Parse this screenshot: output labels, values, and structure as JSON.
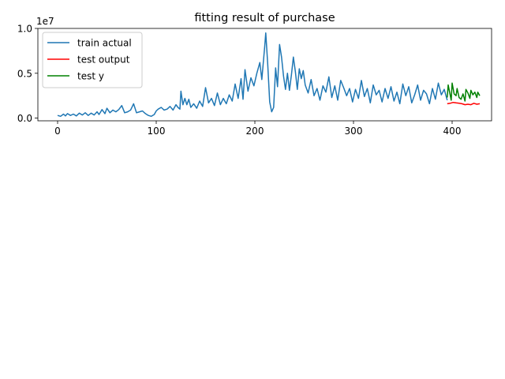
{
  "chart_data": {
    "type": "line",
    "title": "fitting result of purchase",
    "xlabel": "",
    "ylabel": "",
    "xlim": [
      -20,
      440
    ],
    "ylim": [
      -300000,
      10000000
    ],
    "y_offset_label": "1e7",
    "x_ticks": [
      0,
      100,
      200,
      300,
      400
    ],
    "x_tick_labels": [
      "0",
      "100",
      "200",
      "300",
      "400"
    ],
    "y_ticks": [
      0,
      5000000,
      10000000
    ],
    "y_tick_labels": [
      "0.0",
      "0.5",
      "1.0"
    ],
    "grid": false,
    "legend_position": "upper-left",
    "series": [
      {
        "name": "train actual",
        "color": "#1f77b4",
        "points": [
          [
            0,
            300000
          ],
          [
            3,
            200000
          ],
          [
            6,
            450000
          ],
          [
            8,
            250000
          ],
          [
            10,
            500000
          ],
          [
            13,
            300000
          ],
          [
            16,
            450000
          ],
          [
            19,
            250000
          ],
          [
            22,
            550000
          ],
          [
            25,
            350000
          ],
          [
            28,
            600000
          ],
          [
            31,
            300000
          ],
          [
            34,
            550000
          ],
          [
            37,
            350000
          ],
          [
            40,
            700000
          ],
          [
            42,
            400000
          ],
          [
            45,
            950000
          ],
          [
            48,
            500000
          ],
          [
            50,
            1100000
          ],
          [
            53,
            600000
          ],
          [
            56,
            900000
          ],
          [
            59,
            700000
          ],
          [
            62,
            950000
          ],
          [
            65,
            1400000
          ],
          [
            68,
            600000
          ],
          [
            71,
            700000
          ],
          [
            74,
            900000
          ],
          [
            77,
            1600000
          ],
          [
            80,
            600000
          ],
          [
            83,
            700000
          ],
          [
            86,
            800000
          ],
          [
            89,
            500000
          ],
          [
            92,
            300000
          ],
          [
            95,
            200000
          ],
          [
            98,
            400000
          ],
          [
            100,
            800000
          ],
          [
            102,
            1000000
          ],
          [
            105,
            1200000
          ],
          [
            108,
            900000
          ],
          [
            111,
            1000000
          ],
          [
            114,
            1300000
          ],
          [
            117,
            900000
          ],
          [
            120,
            1500000
          ],
          [
            122,
            1200000
          ],
          [
            124,
            1000000
          ],
          [
            125,
            3000000
          ],
          [
            127,
            1500000
          ],
          [
            129,
            2200000
          ],
          [
            131,
            1500000
          ],
          [
            133,
            2100000
          ],
          [
            135,
            1200000
          ],
          [
            138,
            1600000
          ],
          [
            141,
            1100000
          ],
          [
            144,
            1900000
          ],
          [
            147,
            1300000
          ],
          [
            150,
            3400000
          ],
          [
            153,
            1700000
          ],
          [
            156,
            2200000
          ],
          [
            159,
            1400000
          ],
          [
            162,
            2800000
          ],
          [
            165,
            1500000
          ],
          [
            168,
            2200000
          ],
          [
            171,
            1600000
          ],
          [
            174,
            2600000
          ],
          [
            177,
            1900000
          ],
          [
            180,
            3800000
          ],
          [
            183,
            2200000
          ],
          [
            186,
            4400000
          ],
          [
            188,
            2100000
          ],
          [
            190,
            5400000
          ],
          [
            193,
            3000000
          ],
          [
            196,
            4500000
          ],
          [
            199,
            3600000
          ],
          [
            202,
            5000000
          ],
          [
            205,
            6200000
          ],
          [
            207,
            4300000
          ],
          [
            210,
            8000000
          ],
          [
            211,
            9500000
          ],
          [
            213,
            6000000
          ],
          [
            215,
            1800000
          ],
          [
            217,
            700000
          ],
          [
            219,
            1200000
          ],
          [
            221,
            5600000
          ],
          [
            223,
            3500000
          ],
          [
            225,
            8200000
          ],
          [
            227,
            6800000
          ],
          [
            229,
            4700000
          ],
          [
            231,
            3200000
          ],
          [
            233,
            5000000
          ],
          [
            235,
            3100000
          ],
          [
            237,
            4800000
          ],
          [
            239,
            6800000
          ],
          [
            241,
            5200000
          ],
          [
            243,
            3200000
          ],
          [
            245,
            5500000
          ],
          [
            247,
            4400000
          ],
          [
            249,
            5300000
          ],
          [
            251,
            3700000
          ],
          [
            254,
            2800000
          ],
          [
            257,
            4300000
          ],
          [
            260,
            2500000
          ],
          [
            263,
            3300000
          ],
          [
            266,
            2000000
          ],
          [
            269,
            3600000
          ],
          [
            272,
            2900000
          ],
          [
            275,
            4600000
          ],
          [
            278,
            2300000
          ],
          [
            281,
            3600000
          ],
          [
            284,
            2000000
          ],
          [
            287,
            4200000
          ],
          [
            290,
            3400000
          ],
          [
            293,
            2500000
          ],
          [
            296,
            3300000
          ],
          [
            299,
            1800000
          ],
          [
            302,
            3200000
          ],
          [
            305,
            2200000
          ],
          [
            308,
            4200000
          ],
          [
            311,
            2400000
          ],
          [
            314,
            3300000
          ],
          [
            317,
            1700000
          ],
          [
            320,
            3700000
          ],
          [
            323,
            2600000
          ],
          [
            326,
            3100000
          ],
          [
            329,
            1800000
          ],
          [
            332,
            3300000
          ],
          [
            335,
            2200000
          ],
          [
            338,
            3500000
          ],
          [
            341,
            1900000
          ],
          [
            344,
            2900000
          ],
          [
            347,
            1600000
          ],
          [
            350,
            3800000
          ],
          [
            353,
            2500000
          ],
          [
            356,
            3500000
          ],
          [
            359,
            1700000
          ],
          [
            362,
            2600000
          ],
          [
            365,
            3700000
          ],
          [
            368,
            2000000
          ],
          [
            371,
            3100000
          ],
          [
            374,
            2700000
          ],
          [
            377,
            1600000
          ],
          [
            380,
            3300000
          ],
          [
            383,
            2100000
          ],
          [
            386,
            3900000
          ],
          [
            389,
            2600000
          ],
          [
            392,
            3200000
          ],
          [
            395,
            2000000
          ]
        ]
      },
      {
        "name": "test output",
        "color": "#ff0000",
        "points": [
          [
            395,
            1600000
          ],
          [
            398,
            1650000
          ],
          [
            401,
            1750000
          ],
          [
            404,
            1700000
          ],
          [
            407,
            1650000
          ],
          [
            410,
            1600000
          ],
          [
            413,
            1500000
          ],
          [
            416,
            1550000
          ],
          [
            419,
            1500000
          ],
          [
            422,
            1650000
          ],
          [
            425,
            1550000
          ],
          [
            428,
            1600000
          ]
        ]
      },
      {
        "name": "test y",
        "color": "#008000",
        "points": [
          [
            395,
            2300000
          ],
          [
            396,
            3700000
          ],
          [
            398,
            2600000
          ],
          [
            399,
            2000000
          ],
          [
            400,
            3900000
          ],
          [
            402,
            2700000
          ],
          [
            404,
            2500000
          ],
          [
            405,
            3300000
          ],
          [
            407,
            2300000
          ],
          [
            409,
            2100000
          ],
          [
            411,
            2700000
          ],
          [
            413,
            1900000
          ],
          [
            414,
            3200000
          ],
          [
            416,
            2800000
          ],
          [
            418,
            2200000
          ],
          [
            419,
            3100000
          ],
          [
            421,
            2600000
          ],
          [
            423,
            2900000
          ],
          [
            425,
            2300000
          ],
          [
            426,
            2900000
          ],
          [
            428,
            2500000
          ]
        ]
      }
    ]
  }
}
